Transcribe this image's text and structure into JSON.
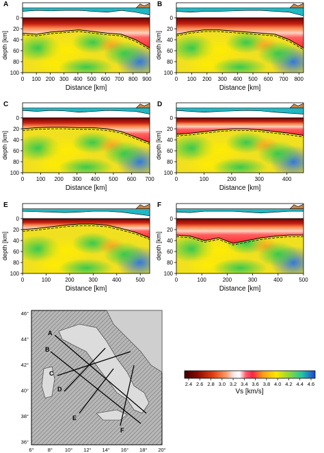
{
  "figure": {
    "panels": [
      {
        "id": "A",
        "letter": "A",
        "x_ticks": [
          "0",
          "100",
          "200",
          "300",
          "400",
          "500",
          "600",
          "700",
          "800",
          "900"
        ],
        "xmax": 920
      },
      {
        "id": "B",
        "letter": "B",
        "x_ticks": [
          "0",
          "100",
          "200",
          "300",
          "400",
          "500",
          "600",
          "700",
          "800"
        ],
        "xmax": 830
      },
      {
        "id": "C",
        "letter": "C",
        "x_ticks": [
          "0",
          "100",
          "200",
          "300",
          "400",
          "500",
          "600",
          "700"
        ],
        "xmax": 700
      },
      {
        "id": "D",
        "letter": "D",
        "x_ticks": [
          "0",
          "100",
          "200",
          "300",
          "400"
        ],
        "xmax": 460
      },
      {
        "id": "E",
        "letter": "E",
        "x_ticks": [
          "0",
          "100",
          "200",
          "300",
          "400",
          "500"
        ],
        "xmax": 540
      },
      {
        "id": "F",
        "letter": "F",
        "x_ticks": [
          "0",
          "100",
          "200",
          "300",
          "400",
          "500"
        ],
        "xmax": 500
      }
    ],
    "y_ticks": [
      "0",
      "20",
      "40",
      "60",
      "80",
      "100"
    ],
    "ylabel": "depth [km]",
    "xlabel": "Distance [km]",
    "map": {
      "lat_ticks": [
        "46°",
        "44°",
        "42°",
        "40°",
        "38°",
        "36°"
      ],
      "lon_ticks": [
        "6°",
        "8°",
        "10°",
        "12°",
        "14°",
        "16°",
        "18°",
        "20°"
      ],
      "profile_labels": [
        "A",
        "B",
        "C",
        "D",
        "E",
        "F"
      ]
    },
    "colorbar": {
      "ticks": [
        "2.4",
        "2.6",
        "2.8",
        "3.0",
        "3.2",
        "3.4",
        "3.6",
        "3.8",
        "4.0",
        "4.2",
        "4.4",
        "4.6"
      ],
      "label": "Vs [km/s]"
    }
  },
  "colors": {
    "water": "#1fb8c4",
    "land": "#c8864a",
    "slow": "#5a0000",
    "mid": "#ffe600",
    "fast": "#1450d8"
  }
}
